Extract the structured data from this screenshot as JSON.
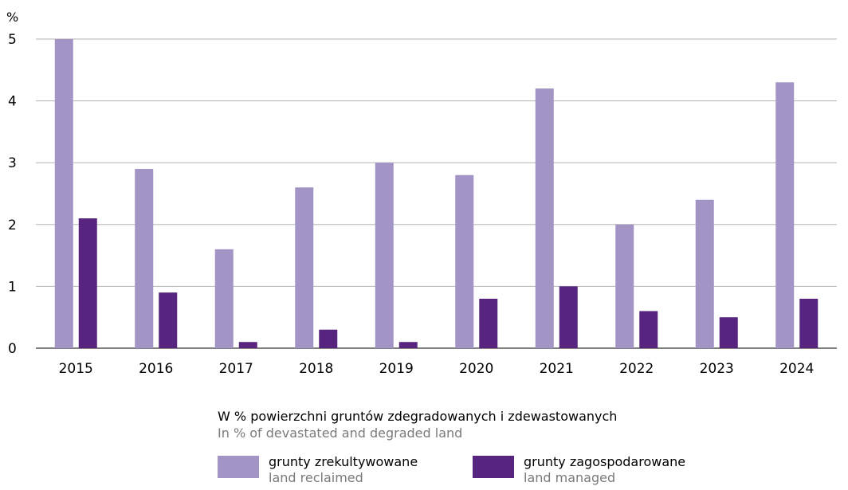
{
  "chart_data": {
    "type": "bar",
    "unit_label": "%",
    "categories": [
      "2015",
      "2016",
      "2017",
      "2018",
      "2019",
      "2020",
      "2021",
      "2022",
      "2023",
      "2024"
    ],
    "series": [
      {
        "name": "grunty zrekultywowane",
        "name_en": "land reclaimed",
        "color": "#a394c6",
        "values": [
          5.0,
          2.9,
          1.6,
          2.6,
          3.0,
          2.8,
          4.2,
          2.0,
          2.4,
          4.3
        ]
      },
      {
        "name": "grunty zagospodarowane",
        "name_en": "land managed",
        "color": "#57257f",
        "values": [
          2.1,
          0.9,
          0.1,
          0.3,
          0.1,
          0.8,
          1.0,
          0.6,
          0.5,
          0.8
        ]
      }
    ],
    "ylim": [
      0,
      5
    ],
    "yticks": [
      0,
      1,
      2,
      3,
      4,
      5
    ],
    "grid": true,
    "gridline_color": "#b3b3b3"
  },
  "caption": {
    "pl": "W % powierzchni gruntów zdegradowanych i zdewastowanych",
    "en": "In % of devastated and degraded land"
  },
  "legend": {
    "placement": "bottom",
    "items": [
      {
        "pl": "grunty zrekultywowane",
        "en": "land reclaimed",
        "color": "#a394c6"
      },
      {
        "pl": "grunty zagospodarowane",
        "en": "land managed",
        "color": "#57257f"
      }
    ]
  }
}
